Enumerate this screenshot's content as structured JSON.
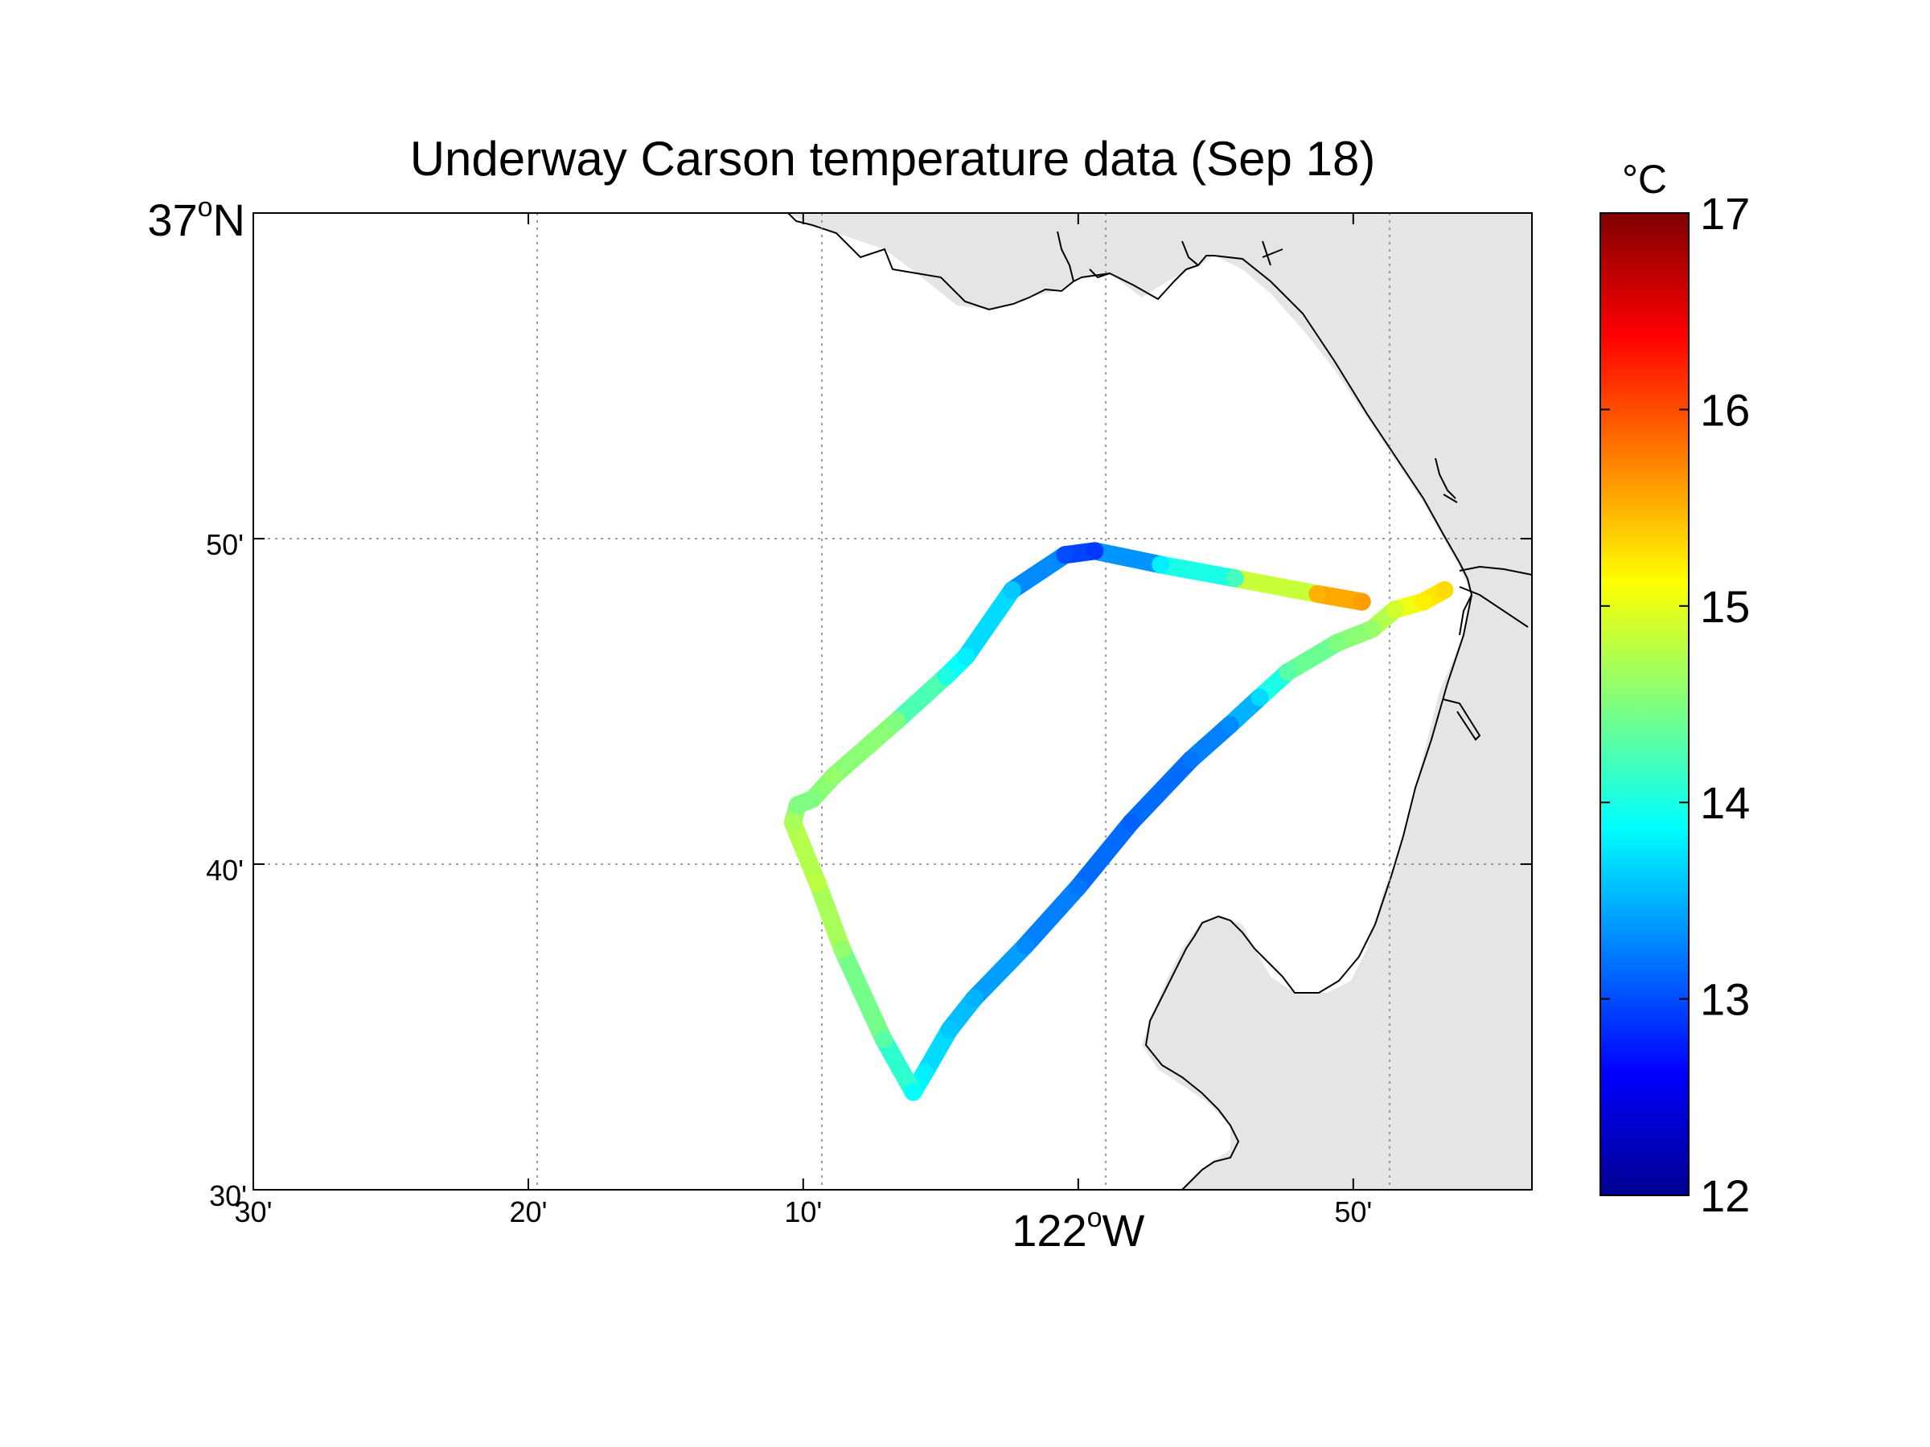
{
  "title": "Underway Carson temperature data (Sep 18)",
  "colorbar": {
    "unit": "°C",
    "min": 12,
    "max": 17,
    "ticks": [
      "12",
      "13",
      "14",
      "15",
      "16",
      "17"
    ],
    "colormap": "jet"
  },
  "axes": {
    "lon_range_deg": [
      -122.5,
      -121.725
    ],
    "lat_range_deg": [
      36.5,
      37.0
    ],
    "grid": true,
    "x_ticks": [
      {
        "lon": -122.5,
        "text": "30'"
      },
      {
        "lon": -122.3333,
        "text": "20'"
      },
      {
        "lon": -122.1667,
        "text": "10'"
      },
      {
        "lon": -121.8333,
        "text": "50'"
      }
    ],
    "x_major": {
      "lon": -122.0,
      "deg": "122",
      "sup": "o",
      "hemi": "W"
    },
    "y_ticks": [
      {
        "lat": 36.6667,
        "text": "40'"
      },
      {
        "lat": 36.8333,
        "text": "50'"
      }
    ],
    "y_bottom": {
      "lat": 36.5,
      "text": "30'"
    },
    "y_major": {
      "lat": 37.0,
      "deg": "37",
      "sup": "o",
      "hemi": "N"
    }
  },
  "land_color": "#e5e5e5",
  "chart_data": {
    "type": "scatter",
    "title": "Underway Carson temperature data (Sep 18)",
    "xlabel": "",
    "ylabel": "",
    "color_variable": "temperature (°C)",
    "track": [
      {
        "lon": -121.778,
        "lat": 36.807,
        "temp": 15.3
      },
      {
        "lon": -121.791,
        "lat": 36.801,
        "temp": 15.2
      },
      {
        "lon": -121.808,
        "lat": 36.797,
        "temp": 14.9
      },
      {
        "lon": -121.822,
        "lat": 36.787,
        "temp": 14.6
      },
      {
        "lon": -121.843,
        "lat": 36.78,
        "temp": 14.5
      },
      {
        "lon": -121.873,
        "lat": 36.765,
        "temp": 14.3
      },
      {
        "lon": -121.89,
        "lat": 36.752,
        "temp": 13.7
      },
      {
        "lon": -121.908,
        "lat": 36.738,
        "temp": 13.3
      },
      {
        "lon": -121.932,
        "lat": 36.72,
        "temp": 13.2
      },
      {
        "lon": -121.968,
        "lat": 36.688,
        "temp": 13.1
      },
      {
        "lon": -122.0,
        "lat": 36.655,
        "temp": 13.2
      },
      {
        "lon": -122.032,
        "lat": 36.625,
        "temp": 13.3
      },
      {
        "lon": -122.063,
        "lat": 36.598,
        "temp": 13.5
      },
      {
        "lon": -122.078,
        "lat": 36.582,
        "temp": 13.6
      },
      {
        "lon": -122.093,
        "lat": 36.56,
        "temp": 13.8
      },
      {
        "lon": -122.1,
        "lat": 36.55,
        "temp": 13.9
      },
      {
        "lon": -122.118,
        "lat": 36.577,
        "temp": 14.3
      },
      {
        "lon": -122.143,
        "lat": 36.623,
        "temp": 14.6
      },
      {
        "lon": -122.158,
        "lat": 36.657,
        "temp": 14.8
      },
      {
        "lon": -122.173,
        "lat": 36.688,
        "temp": 14.7
      },
      {
        "lon": -122.17,
        "lat": 36.697,
        "temp": 14.5
      },
      {
        "lon": -122.161,
        "lat": 36.7,
        "temp": 14.5
      },
      {
        "lon": -122.148,
        "lat": 36.712,
        "temp": 14.6
      },
      {
        "lon": -122.11,
        "lat": 36.74,
        "temp": 14.5
      },
      {
        "lon": -122.08,
        "lat": 36.763,
        "temp": 14.0
      },
      {
        "lon": -122.068,
        "lat": 36.773,
        "temp": 13.8
      },
      {
        "lon": -122.04,
        "lat": 36.807,
        "temp": 13.6
      },
      {
        "lon": -122.008,
        "lat": 36.825,
        "temp": 13.0
      },
      {
        "lon": -121.99,
        "lat": 36.827,
        "temp": 12.9
      },
      {
        "lon": -121.95,
        "lat": 36.82,
        "temp": 13.8
      },
      {
        "lon": -121.905,
        "lat": 36.813,
        "temp": 14.2
      },
      {
        "lon": -121.855,
        "lat": 36.805,
        "temp": 15.5
      },
      {
        "lon": -121.828,
        "lat": 36.801,
        "temp": 15.6
      }
    ]
  }
}
